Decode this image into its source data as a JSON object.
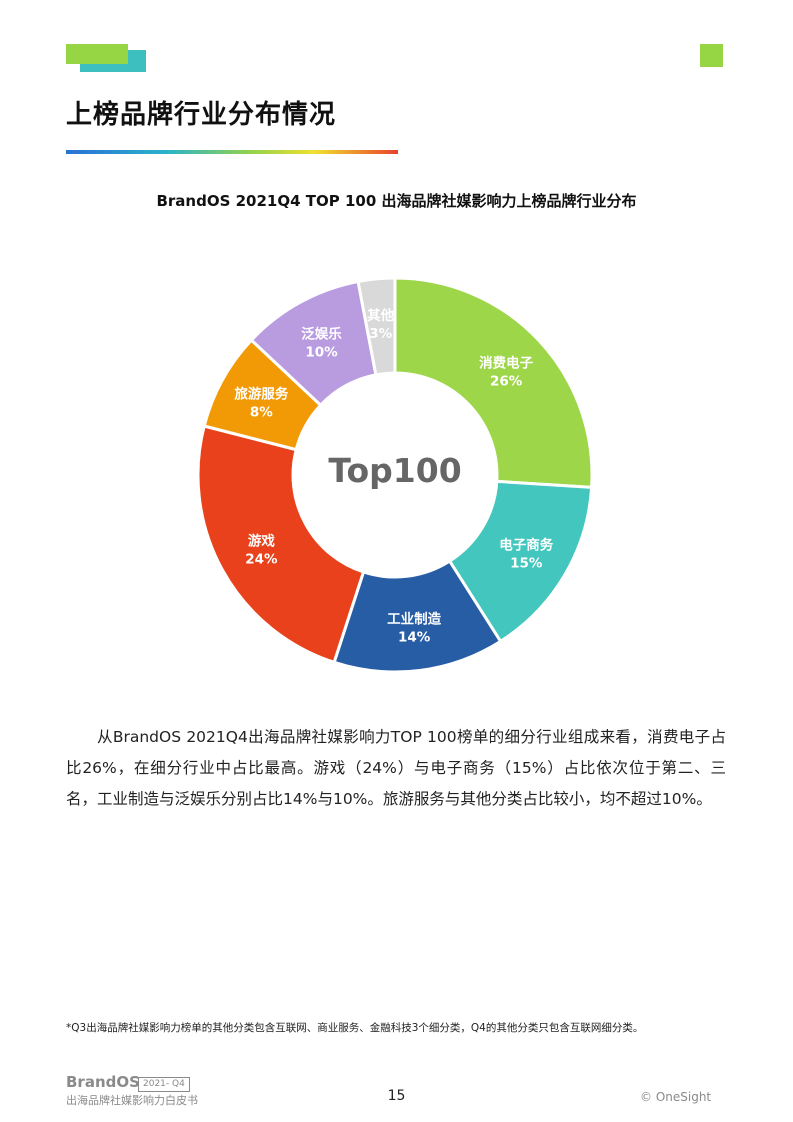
{
  "page": {
    "title": "上榜品牌行业分布情况",
    "page_number": "15",
    "copyright": "© OneSight",
    "brand": {
      "logo": "BrandOS",
      "badge": "2021- Q4",
      "subtitle": "出海品牌社媒影响力白皮书"
    }
  },
  "chart_data": {
    "type": "pie",
    "title": "BrandOS 2021Q4 TOP 100 出海品牌社媒影响力上榜品牌行业分布",
    "center_label": "Top100",
    "slices": [
      {
        "label": "消费电子",
        "value": 26,
        "value_label": "26%",
        "color": "#9ed64a"
      },
      {
        "label": "电子商务",
        "value": 15,
        "value_label": "15%",
        "color": "#43c6bd"
      },
      {
        "label": "工业制造",
        "value": 14,
        "value_label": "14%",
        "color": "#275da5"
      },
      {
        "label": "游戏",
        "value": 24,
        "value_label": "24%",
        "color": "#e9411b"
      },
      {
        "label": "旅游服务",
        "value": 8,
        "value_label": "8%",
        "color": "#f29a06"
      },
      {
        "label": "泛娱乐",
        "value": 10,
        "value_label": "10%",
        "color": "#b99ce0"
      },
      {
        "label": "其他",
        "value": 3,
        "value_label": "3%",
        "color": "#d9d9d9"
      }
    ]
  },
  "body_text": "从BrandOS 2021Q4出海品牌社媒影响力TOP 100榜单的细分行业组成来看，消费电子占比26%，在细分行业中占比最高。游戏（24%）与电子商务（15%）占比依次位于第二、三名，工业制造与泛娱乐分别占比14%与10%。旅游服务与其他分类占比较小，均不超过10%。",
  "footnote": "*Q3出海品牌社媒影响力榜单的其他分类包含互联网、商业服务、金融科技3个细分类，Q4的其他分类只包含互联网细分类。"
}
